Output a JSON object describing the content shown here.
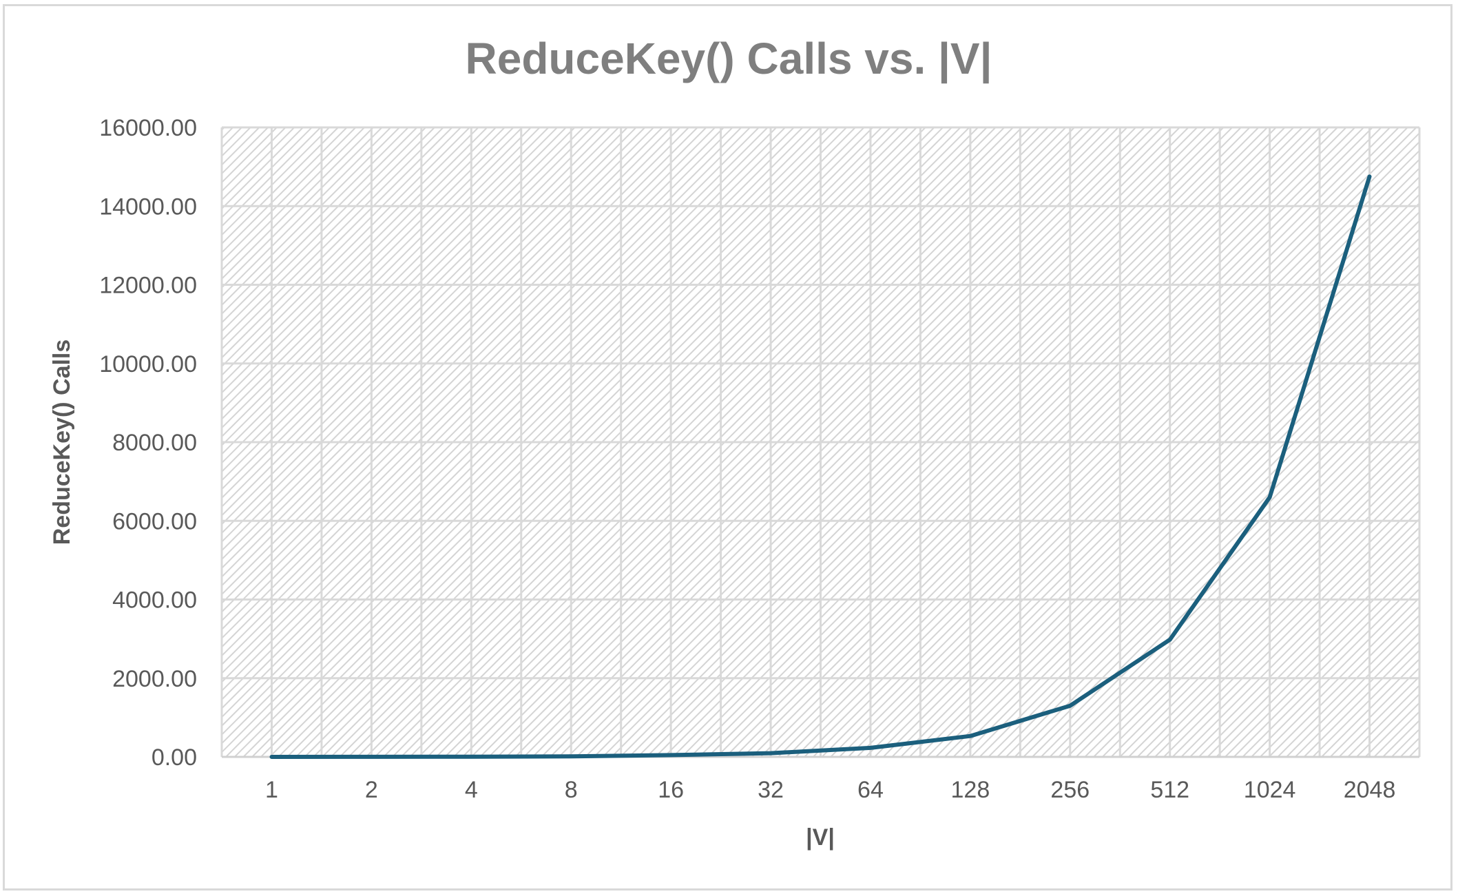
{
  "chart_data": {
    "type": "line",
    "title": "ReduceKey() Calls vs. |V|",
    "xlabel": "|V|",
    "ylabel": "ReduceKey() Calls",
    "categories": [
      "1",
      "2",
      "4",
      "8",
      "16",
      "32",
      "64",
      "128",
      "256",
      "512",
      "1024",
      "2048"
    ],
    "series": [
      {
        "values": [
          0,
          1,
          5,
          12,
          45,
          95,
          230,
          530,
          1300,
          2980,
          6600,
          14750
        ],
        "color": "#1b5f7d"
      }
    ],
    "ylim": [
      0,
      16000
    ],
    "yticks": [
      "0.00",
      "2000.00",
      "4000.00",
      "6000.00",
      "8000.00",
      "10000.00",
      "12000.00",
      "14000.00",
      "16000.00"
    ],
    "ytick_values": [
      0,
      2000,
      4000,
      6000,
      8000,
      10000,
      12000,
      14000,
      16000
    ],
    "grid": true,
    "legend": "none",
    "plot_background": "diagonal-hatch",
    "colors": {
      "line": "#1b5f7d",
      "grid": "#d9d9d9",
      "hatch": "#d9d9d9",
      "title": "#7f7f7f",
      "axis_text": "#595959"
    }
  }
}
